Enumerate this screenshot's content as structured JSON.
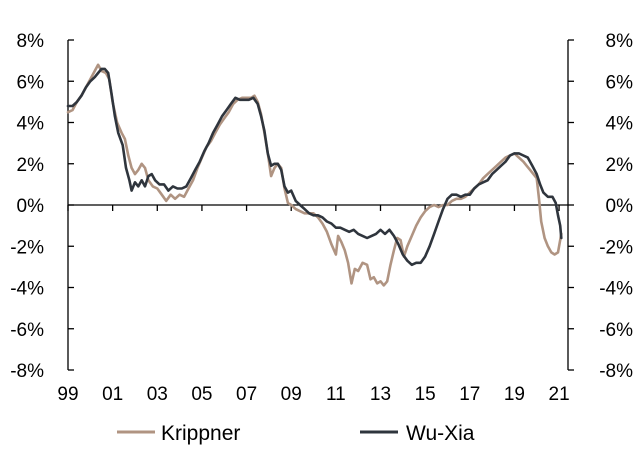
{
  "chart_data": {
    "type": "line",
    "title": "",
    "xlabel": "",
    "ylabel": "",
    "xlim": [
      1999.0,
      2021.4
    ],
    "ylim": [
      -8,
      8
    ],
    "x_ticks": [
      {
        "value": 1999,
        "label": "99"
      },
      {
        "value": 2001,
        "label": "01"
      },
      {
        "value": 2003,
        "label": "03"
      },
      {
        "value": 2005,
        "label": "05"
      },
      {
        "value": 2007,
        "label": "07"
      },
      {
        "value": 2009,
        "label": "09"
      },
      {
        "value": 2011,
        "label": "11"
      },
      {
        "value": 2013,
        "label": "13"
      },
      {
        "value": 2015,
        "label": "15"
      },
      {
        "value": 2017,
        "label": "17"
      },
      {
        "value": 2019,
        "label": "19"
      },
      {
        "value": 2021,
        "label": "21"
      }
    ],
    "y_ticks": [
      {
        "value": 8,
        "label": "8%"
      },
      {
        "value": 6,
        "label": "6%"
      },
      {
        "value": 4,
        "label": "4%"
      },
      {
        "value": 2,
        "label": "2%"
      },
      {
        "value": 0,
        "label": "0%"
      },
      {
        "value": -2,
        "label": "-2%"
      },
      {
        "value": -4,
        "label": "-4%"
      },
      {
        "value": -6,
        "label": "-6%"
      },
      {
        "value": -8,
        "label": "-8%"
      }
    ],
    "grid": false,
    "legend_position": "bottom",
    "series": [
      {
        "name": "Krippner",
        "color": "#b09482",
        "points": [
          [
            1999.0,
            4.5
          ],
          [
            1999.2,
            4.6
          ],
          [
            1999.4,
            5.0
          ],
          [
            1999.6,
            5.3
          ],
          [
            1999.8,
            5.7
          ],
          [
            2000.0,
            6.1
          ],
          [
            2000.2,
            6.5
          ],
          [
            2000.35,
            6.8
          ],
          [
            2000.5,
            6.5
          ],
          [
            2000.7,
            6.4
          ],
          [
            2000.85,
            6.1
          ],
          [
            2001.0,
            5.0
          ],
          [
            2001.2,
            4.0
          ],
          [
            2001.4,
            3.5
          ],
          [
            2001.55,
            3.2
          ],
          [
            2001.7,
            2.4
          ],
          [
            2001.85,
            1.8
          ],
          [
            2002.0,
            1.5
          ],
          [
            2002.15,
            1.7
          ],
          [
            2002.3,
            2.0
          ],
          [
            2002.45,
            1.8
          ],
          [
            2002.6,
            1.2
          ],
          [
            2002.8,
            0.9
          ],
          [
            2003.0,
            0.8
          ],
          [
            2003.2,
            0.5
          ],
          [
            2003.4,
            0.2
          ],
          [
            2003.6,
            0.5
          ],
          [
            2003.8,
            0.3
          ],
          [
            2004.0,
            0.5
          ],
          [
            2004.2,
            0.4
          ],
          [
            2004.4,
            0.8
          ],
          [
            2004.6,
            1.2
          ],
          [
            2004.8,
            1.8
          ],
          [
            2005.0,
            2.3
          ],
          [
            2005.2,
            2.8
          ],
          [
            2005.4,
            3.1
          ],
          [
            2005.6,
            3.5
          ],
          [
            2005.8,
            3.9
          ],
          [
            2006.0,
            4.2
          ],
          [
            2006.2,
            4.5
          ],
          [
            2006.4,
            4.9
          ],
          [
            2006.6,
            5.1
          ],
          [
            2006.8,
            5.2
          ],
          [
            2007.0,
            5.2
          ],
          [
            2007.2,
            5.2
          ],
          [
            2007.35,
            5.3
          ],
          [
            2007.5,
            5.0
          ],
          [
            2007.65,
            4.4
          ],
          [
            2007.8,
            3.5
          ],
          [
            2007.95,
            2.5
          ],
          [
            2008.1,
            1.4
          ],
          [
            2008.25,
            1.8
          ],
          [
            2008.4,
            2.0
          ],
          [
            2008.55,
            1.8
          ],
          [
            2008.7,
            0.8
          ],
          [
            2008.85,
            0.1
          ],
          [
            2009.0,
            0.0
          ],
          [
            2009.2,
            -0.2
          ],
          [
            2009.4,
            -0.3
          ],
          [
            2009.6,
            -0.4
          ],
          [
            2009.8,
            -0.4
          ],
          [
            2010.0,
            -0.4
          ],
          [
            2010.2,
            -0.6
          ],
          [
            2010.4,
            -0.9
          ],
          [
            2010.6,
            -1.3
          ],
          [
            2010.8,
            -1.9
          ],
          [
            2011.0,
            -2.4
          ],
          [
            2011.1,
            -1.5
          ],
          [
            2011.25,
            -1.8
          ],
          [
            2011.4,
            -2.2
          ],
          [
            2011.55,
            -2.8
          ],
          [
            2011.7,
            -3.8
          ],
          [
            2011.85,
            -3.1
          ],
          [
            2012.0,
            -3.2
          ],
          [
            2012.2,
            -2.8
          ],
          [
            2012.4,
            -2.9
          ],
          [
            2012.55,
            -3.6
          ],
          [
            2012.7,
            -3.5
          ],
          [
            2012.85,
            -3.8
          ],
          [
            2013.0,
            -3.7
          ],
          [
            2013.15,
            -3.9
          ],
          [
            2013.3,
            -3.7
          ],
          [
            2013.45,
            -2.9
          ],
          [
            2013.6,
            -2.2
          ],
          [
            2013.75,
            -1.6
          ],
          [
            2013.9,
            -1.7
          ],
          [
            2014.05,
            -2.5
          ],
          [
            2014.2,
            -2.0
          ],
          [
            2014.4,
            -1.5
          ],
          [
            2014.6,
            -1.0
          ],
          [
            2014.8,
            -0.6
          ],
          [
            2015.0,
            -0.3
          ],
          [
            2015.2,
            -0.1
          ],
          [
            2015.4,
            0.0
          ],
          [
            2015.6,
            -0.1
          ],
          [
            2015.8,
            0.0
          ],
          [
            2016.0,
            0.0
          ],
          [
            2016.2,
            0.2
          ],
          [
            2016.4,
            0.3
          ],
          [
            2016.6,
            0.3
          ],
          [
            2016.8,
            0.4
          ],
          [
            2017.0,
            0.6
          ],
          [
            2017.2,
            0.8
          ],
          [
            2017.4,
            1.0
          ],
          [
            2017.6,
            1.3
          ],
          [
            2017.8,
            1.5
          ],
          [
            2018.0,
            1.7
          ],
          [
            2018.2,
            1.9
          ],
          [
            2018.4,
            2.1
          ],
          [
            2018.6,
            2.3
          ],
          [
            2018.8,
            2.4
          ],
          [
            2019.0,
            2.5
          ],
          [
            2019.2,
            2.3
          ],
          [
            2019.4,
            2.1
          ],
          [
            2019.55,
            1.9
          ],
          [
            2019.7,
            1.7
          ],
          [
            2019.85,
            1.5
          ],
          [
            2020.0,
            1.3
          ],
          [
            2020.1,
            0.3
          ],
          [
            2020.2,
            -0.8
          ],
          [
            2020.35,
            -1.6
          ],
          [
            2020.5,
            -2.0
          ],
          [
            2020.65,
            -2.3
          ],
          [
            2020.8,
            -2.4
          ],
          [
            2020.95,
            -2.3
          ],
          [
            2021.1,
            -1.4
          ]
        ]
      },
      {
        "name": "Wu-Xia",
        "color": "#2f353d",
        "points": [
          [
            1999.0,
            4.8
          ],
          [
            1999.2,
            4.8
          ],
          [
            1999.4,
            5.0
          ],
          [
            1999.6,
            5.3
          ],
          [
            1999.8,
            5.7
          ],
          [
            2000.0,
            6.0
          ],
          [
            2000.2,
            6.2
          ],
          [
            2000.35,
            6.4
          ],
          [
            2000.5,
            6.6
          ],
          [
            2000.65,
            6.6
          ],
          [
            2000.8,
            6.4
          ],
          [
            2000.95,
            5.4
          ],
          [
            2001.1,
            4.3
          ],
          [
            2001.25,
            3.5
          ],
          [
            2001.45,
            2.9
          ],
          [
            2001.6,
            1.8
          ],
          [
            2001.75,
            1.2
          ],
          [
            2001.85,
            0.7
          ],
          [
            2002.0,
            1.1
          ],
          [
            2002.15,
            0.9
          ],
          [
            2002.3,
            1.2
          ],
          [
            2002.45,
            0.9
          ],
          [
            2002.6,
            1.4
          ],
          [
            2002.75,
            1.5
          ],
          [
            2002.9,
            1.2
          ],
          [
            2003.1,
            1.0
          ],
          [
            2003.3,
            1.0
          ],
          [
            2003.5,
            0.7
          ],
          [
            2003.7,
            0.9
          ],
          [
            2003.9,
            0.8
          ],
          [
            2004.1,
            0.8
          ],
          [
            2004.3,
            0.9
          ],
          [
            2004.5,
            1.3
          ],
          [
            2004.7,
            1.7
          ],
          [
            2004.9,
            2.1
          ],
          [
            2005.1,
            2.6
          ],
          [
            2005.3,
            3.0
          ],
          [
            2005.5,
            3.5
          ],
          [
            2005.7,
            3.9
          ],
          [
            2005.9,
            4.3
          ],
          [
            2006.1,
            4.6
          ],
          [
            2006.3,
            4.9
          ],
          [
            2006.5,
            5.2
          ],
          [
            2006.7,
            5.1
          ],
          [
            2006.9,
            5.1
          ],
          [
            2007.1,
            5.1
          ],
          [
            2007.3,
            5.2
          ],
          [
            2007.5,
            4.9
          ],
          [
            2007.65,
            4.3
          ],
          [
            2007.8,
            3.6
          ],
          [
            2007.95,
            2.5
          ],
          [
            2008.1,
            1.9
          ],
          [
            2008.25,
            2.0
          ],
          [
            2008.4,
            2.0
          ],
          [
            2008.55,
            1.7
          ],
          [
            2008.7,
            0.9
          ],
          [
            2008.85,
            0.6
          ],
          [
            2009.0,
            0.7
          ],
          [
            2009.2,
            0.2
          ],
          [
            2009.4,
            0.0
          ],
          [
            2009.6,
            -0.2
          ],
          [
            2009.8,
            -0.4
          ],
          [
            2010.0,
            -0.5
          ],
          [
            2010.2,
            -0.5
          ],
          [
            2010.4,
            -0.6
          ],
          [
            2010.6,
            -0.8
          ],
          [
            2010.8,
            -0.9
          ],
          [
            2011.0,
            -1.1
          ],
          [
            2011.2,
            -1.1
          ],
          [
            2011.4,
            -1.2
          ],
          [
            2011.6,
            -1.3
          ],
          [
            2011.8,
            -1.2
          ],
          [
            2012.0,
            -1.4
          ],
          [
            2012.2,
            -1.5
          ],
          [
            2012.4,
            -1.6
          ],
          [
            2012.6,
            -1.5
          ],
          [
            2012.8,
            -1.4
          ],
          [
            2013.0,
            -1.2
          ],
          [
            2013.2,
            -1.4
          ],
          [
            2013.4,
            -1.2
          ],
          [
            2013.6,
            -1.5
          ],
          [
            2013.8,
            -1.9
          ],
          [
            2014.0,
            -2.4
          ],
          [
            2014.2,
            -2.7
          ],
          [
            2014.4,
            -2.9
          ],
          [
            2014.6,
            -2.8
          ],
          [
            2014.8,
            -2.8
          ],
          [
            2015.0,
            -2.5
          ],
          [
            2015.2,
            -2.0
          ],
          [
            2015.4,
            -1.4
          ],
          [
            2015.6,
            -0.8
          ],
          [
            2015.8,
            -0.2
          ],
          [
            2016.0,
            0.3
          ],
          [
            2016.2,
            0.5
          ],
          [
            2016.4,
            0.5
          ],
          [
            2016.6,
            0.4
          ],
          [
            2016.8,
            0.5
          ],
          [
            2017.0,
            0.5
          ],
          [
            2017.2,
            0.8
          ],
          [
            2017.4,
            1.0
          ],
          [
            2017.6,
            1.1
          ],
          [
            2017.8,
            1.2
          ],
          [
            2018.0,
            1.5
          ],
          [
            2018.2,
            1.7
          ],
          [
            2018.4,
            1.9
          ],
          [
            2018.6,
            2.1
          ],
          [
            2018.8,
            2.4
          ],
          [
            2019.0,
            2.5
          ],
          [
            2019.2,
            2.5
          ],
          [
            2019.4,
            2.4
          ],
          [
            2019.6,
            2.3
          ],
          [
            2019.8,
            1.9
          ],
          [
            2020.0,
            1.5
          ],
          [
            2020.15,
            1.0
          ],
          [
            2020.3,
            0.6
          ],
          [
            2020.5,
            0.4
          ],
          [
            2020.7,
            0.4
          ],
          [
            2020.85,
            0.1
          ],
          [
            2020.95,
            -0.5
          ],
          [
            2021.05,
            -1.0
          ],
          [
            2021.1,
            -1.6
          ]
        ]
      }
    ]
  }
}
